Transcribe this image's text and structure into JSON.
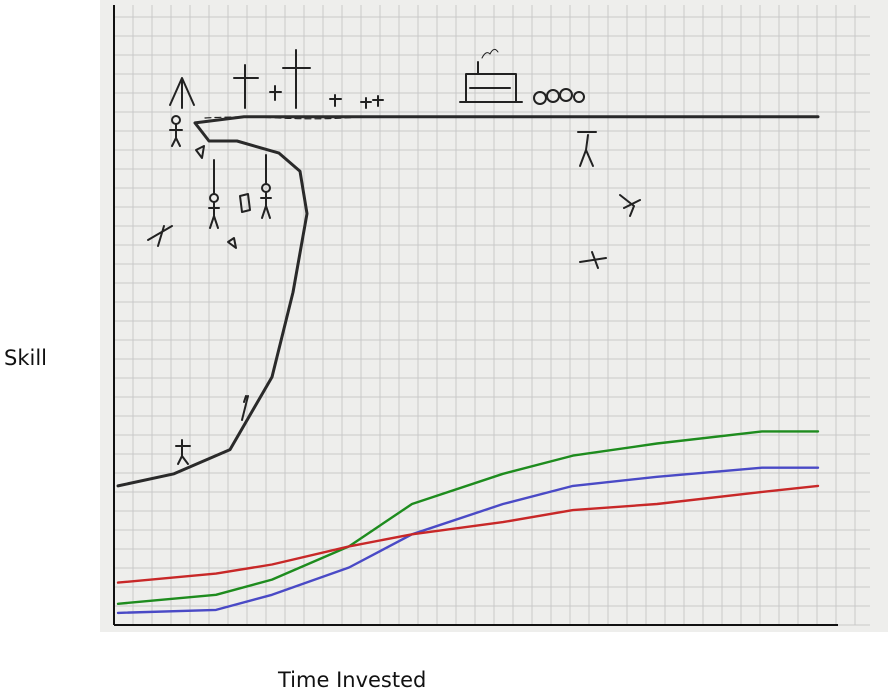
{
  "chart_data": {
    "type": "line",
    "title": "",
    "xlabel": "Time Invested",
    "ylabel": "Skill",
    "xlim": [
      0,
      100
    ],
    "ylim": [
      0,
      100
    ],
    "grid": true,
    "legend": "none",
    "x": [
      0,
      14,
      22,
      33,
      42,
      55,
      65,
      77,
      92,
      100
    ],
    "series": [
      {
        "color": "#2a2a2a",
        "style": "hand-drawn",
        "points": [
          [
            0,
            23
          ],
          [
            8,
            25
          ],
          [
            16,
            29
          ],
          [
            22,
            41
          ],
          [
            25,
            55
          ],
          [
            27,
            68
          ],
          [
            26,
            75
          ],
          [
            23,
            78
          ],
          [
            17,
            80
          ],
          [
            13,
            80
          ],
          [
            11,
            83
          ],
          [
            18,
            84
          ],
          [
            33,
            84
          ],
          [
            50,
            84
          ],
          [
            65,
            84
          ],
          [
            78,
            84
          ],
          [
            90,
            84
          ],
          [
            100,
            84
          ]
        ]
      },
      {
        "color": "#1e8c1e",
        "values": [
          3.5,
          5,
          7.5,
          13,
          20,
          25,
          28,
          30,
          32,
          32
        ]
      },
      {
        "color": "#4a4ac6",
        "values": [
          2,
          2.5,
          5,
          9.5,
          15,
          20,
          23,
          24.5,
          26,
          26
        ]
      },
      {
        "color": "#c82828",
        "values": [
          7,
          8.5,
          10,
          13,
          15,
          17,
          19,
          20,
          22,
          23
        ]
      }
    ]
  }
}
